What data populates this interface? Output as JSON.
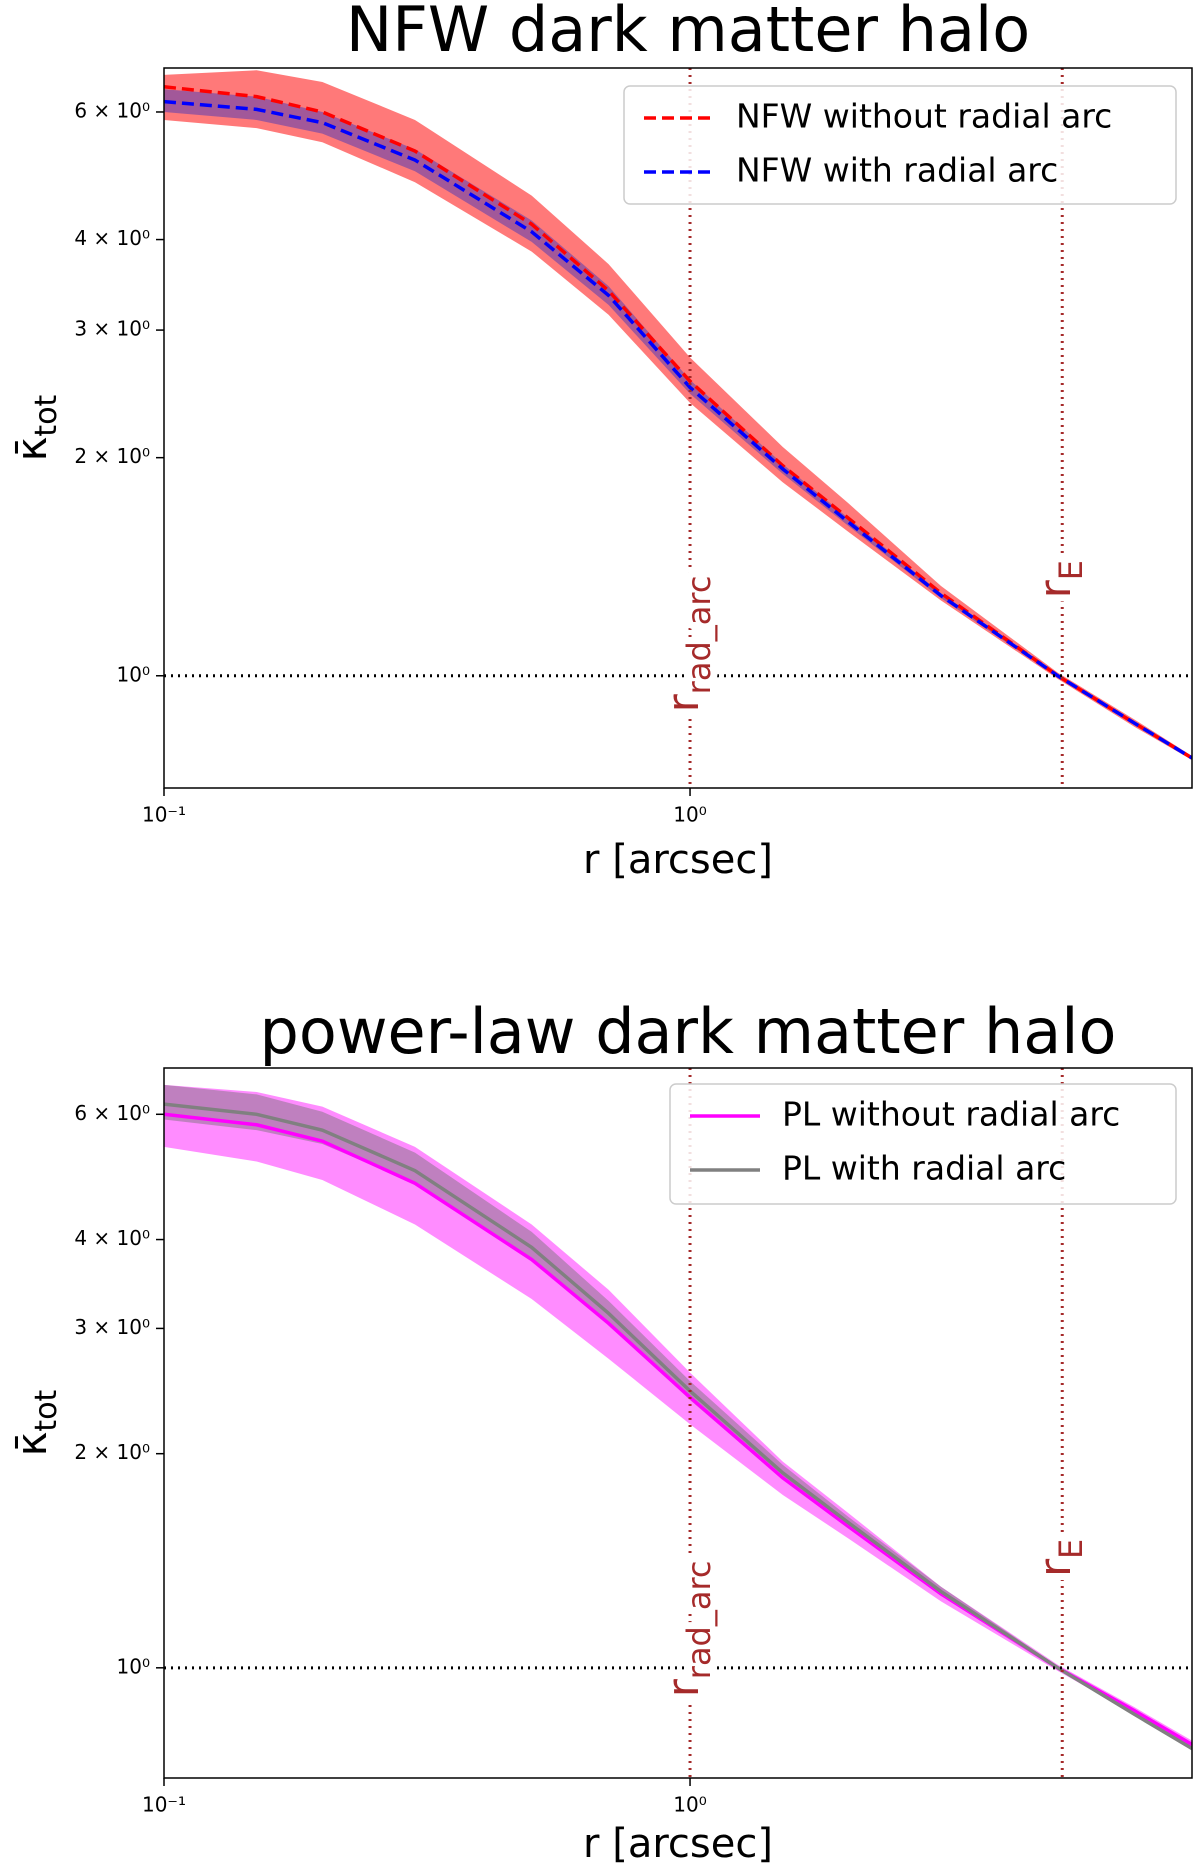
{
  "chart_data": [
    {
      "type": "line",
      "title": "NFW dark matter halo",
      "xlabel": "r [arcsec]",
      "ylabel": {
        "text": "κ̄",
        "subscript": "tot"
      },
      "xscale": "log",
      "yscale": "log",
      "legend": "upper right",
      "xlim": [
        0.1,
        9
      ],
      "ylim": [
        0.7,
        6.9
      ],
      "xticks": [
        {
          "value": 0.1,
          "label": "10⁻¹"
        },
        {
          "value": 1,
          "label": "10⁰"
        }
      ],
      "yticks": [
        {
          "value": 1,
          "label": "10⁰"
        },
        {
          "value": 2,
          "label": "2 × 10⁰"
        },
        {
          "value": 3,
          "label": "3 × 10⁰"
        },
        {
          "value": 4,
          "label": "4 × 10⁰"
        },
        {
          "value": 6,
          "label": "6 × 10⁰"
        }
      ],
      "hline": 1,
      "annotations": [
        {
          "text": "r",
          "subscript": "rad_arc",
          "x": 1,
          "color": "#a52a2a"
        },
        {
          "text": "r",
          "subscript": "E",
          "x": 5.1,
          "color": "#a52a2a"
        }
      ],
      "x": [
        0.1,
        0.15,
        0.2,
        0.3,
        0.5,
        0.7,
        1,
        1.5,
        2,
        3,
        5,
        7,
        9
      ],
      "series": [
        {
          "name": "NFW without radial arc",
          "color": "#ff0000",
          "linestyle": "dashed",
          "band_color": "#ff2020",
          "values": [
            6.5,
            6.3,
            6.0,
            5.3,
            4.2,
            3.4,
            2.55,
            1.95,
            1.65,
            1.3,
            1.0,
            0.86,
            0.77
          ],
          "lower": [
            5.85,
            5.7,
            5.45,
            4.8,
            3.85,
            3.15,
            2.38,
            1.85,
            1.58,
            1.27,
            0.99,
            0.85,
            0.765
          ],
          "upper": [
            6.75,
            6.85,
            6.6,
            5.85,
            4.6,
            3.7,
            2.75,
            2.07,
            1.73,
            1.33,
            1.01,
            0.87,
            0.775
          ]
        },
        {
          "name": "NFW with radial arc",
          "color": "#0000ff",
          "linestyle": "dashed",
          "band_color": "#3030c0",
          "values": [
            6.2,
            6.05,
            5.8,
            5.15,
            4.1,
            3.35,
            2.5,
            1.93,
            1.63,
            1.29,
            1.0,
            0.86,
            0.77
          ],
          "lower": [
            6.0,
            5.85,
            5.6,
            4.97,
            3.97,
            3.25,
            2.45,
            1.9,
            1.61,
            1.28,
            0.995,
            0.855,
            0.765
          ],
          "upper": [
            6.45,
            6.3,
            6.0,
            5.33,
            4.25,
            3.45,
            2.56,
            1.96,
            1.65,
            1.3,
            1.005,
            0.865,
            0.775
          ]
        }
      ]
    },
    {
      "type": "line",
      "title": "power-law dark matter halo",
      "xlabel": "r [arcsec]",
      "ylabel": {
        "text": "κ̄",
        "subscript": "tot"
      },
      "xscale": "log",
      "yscale": "log",
      "legend": "upper right",
      "xlim": [
        0.1,
        9
      ],
      "ylim": [
        0.7,
        6.97
      ],
      "xticks": [
        {
          "value": 0.1,
          "label": "10⁻¹"
        },
        {
          "value": 1,
          "label": "10⁰"
        }
      ],
      "yticks": [
        {
          "value": 1,
          "label": "10⁰"
        },
        {
          "value": 2,
          "label": "2 × 10⁰"
        },
        {
          "value": 3,
          "label": "3 × 10⁰"
        },
        {
          "value": 4,
          "label": "4 × 10⁰"
        },
        {
          "value": 6,
          "label": "6 × 10⁰"
        }
      ],
      "hline": 1,
      "annotations": [
        {
          "text": "r",
          "subscript": "rad_arc",
          "x": 1,
          "color": "#a52a2a"
        },
        {
          "text": "r",
          "subscript": "E",
          "x": 5.1,
          "color": "#a52a2a"
        }
      ],
      "x": [
        0.1,
        0.15,
        0.2,
        0.3,
        0.5,
        0.7,
        1,
        1.5,
        2,
        3,
        5,
        7,
        9
      ],
      "series": [
        {
          "name": "PL without radial arc",
          "color": "#ff00ff",
          "linestyle": "solid",
          "band_color": "#ff40ff",
          "values": [
            6.0,
            5.8,
            5.5,
            4.8,
            3.75,
            3.05,
            2.4,
            1.85,
            1.58,
            1.27,
            1.0,
            0.87,
            0.78
          ],
          "lower": [
            5.4,
            5.15,
            4.85,
            4.2,
            3.3,
            2.72,
            2.2,
            1.75,
            1.52,
            1.24,
            0.99,
            0.86,
            0.77
          ],
          "upper": [
            6.6,
            6.45,
            6.15,
            5.4,
            4.2,
            3.4,
            2.6,
            1.95,
            1.65,
            1.3,
            1.01,
            0.88,
            0.79
          ]
        },
        {
          "name": "PL with radial arc",
          "color": "#808080",
          "linestyle": "solid",
          "band_color": "#707070",
          "values": [
            6.2,
            6.0,
            5.7,
            5.0,
            3.9,
            3.15,
            2.45,
            1.88,
            1.6,
            1.28,
            1.0,
            0.86,
            0.77
          ],
          "lower": [
            5.9,
            5.7,
            5.45,
            4.8,
            3.75,
            3.05,
            2.38,
            1.84,
            1.57,
            1.27,
            0.995,
            0.855,
            0.765
          ],
          "upper": [
            6.6,
            6.4,
            6.05,
            5.3,
            4.1,
            3.28,
            2.53,
            1.93,
            1.63,
            1.3,
            1.005,
            0.865,
            0.775
          ]
        }
      ]
    }
  ]
}
